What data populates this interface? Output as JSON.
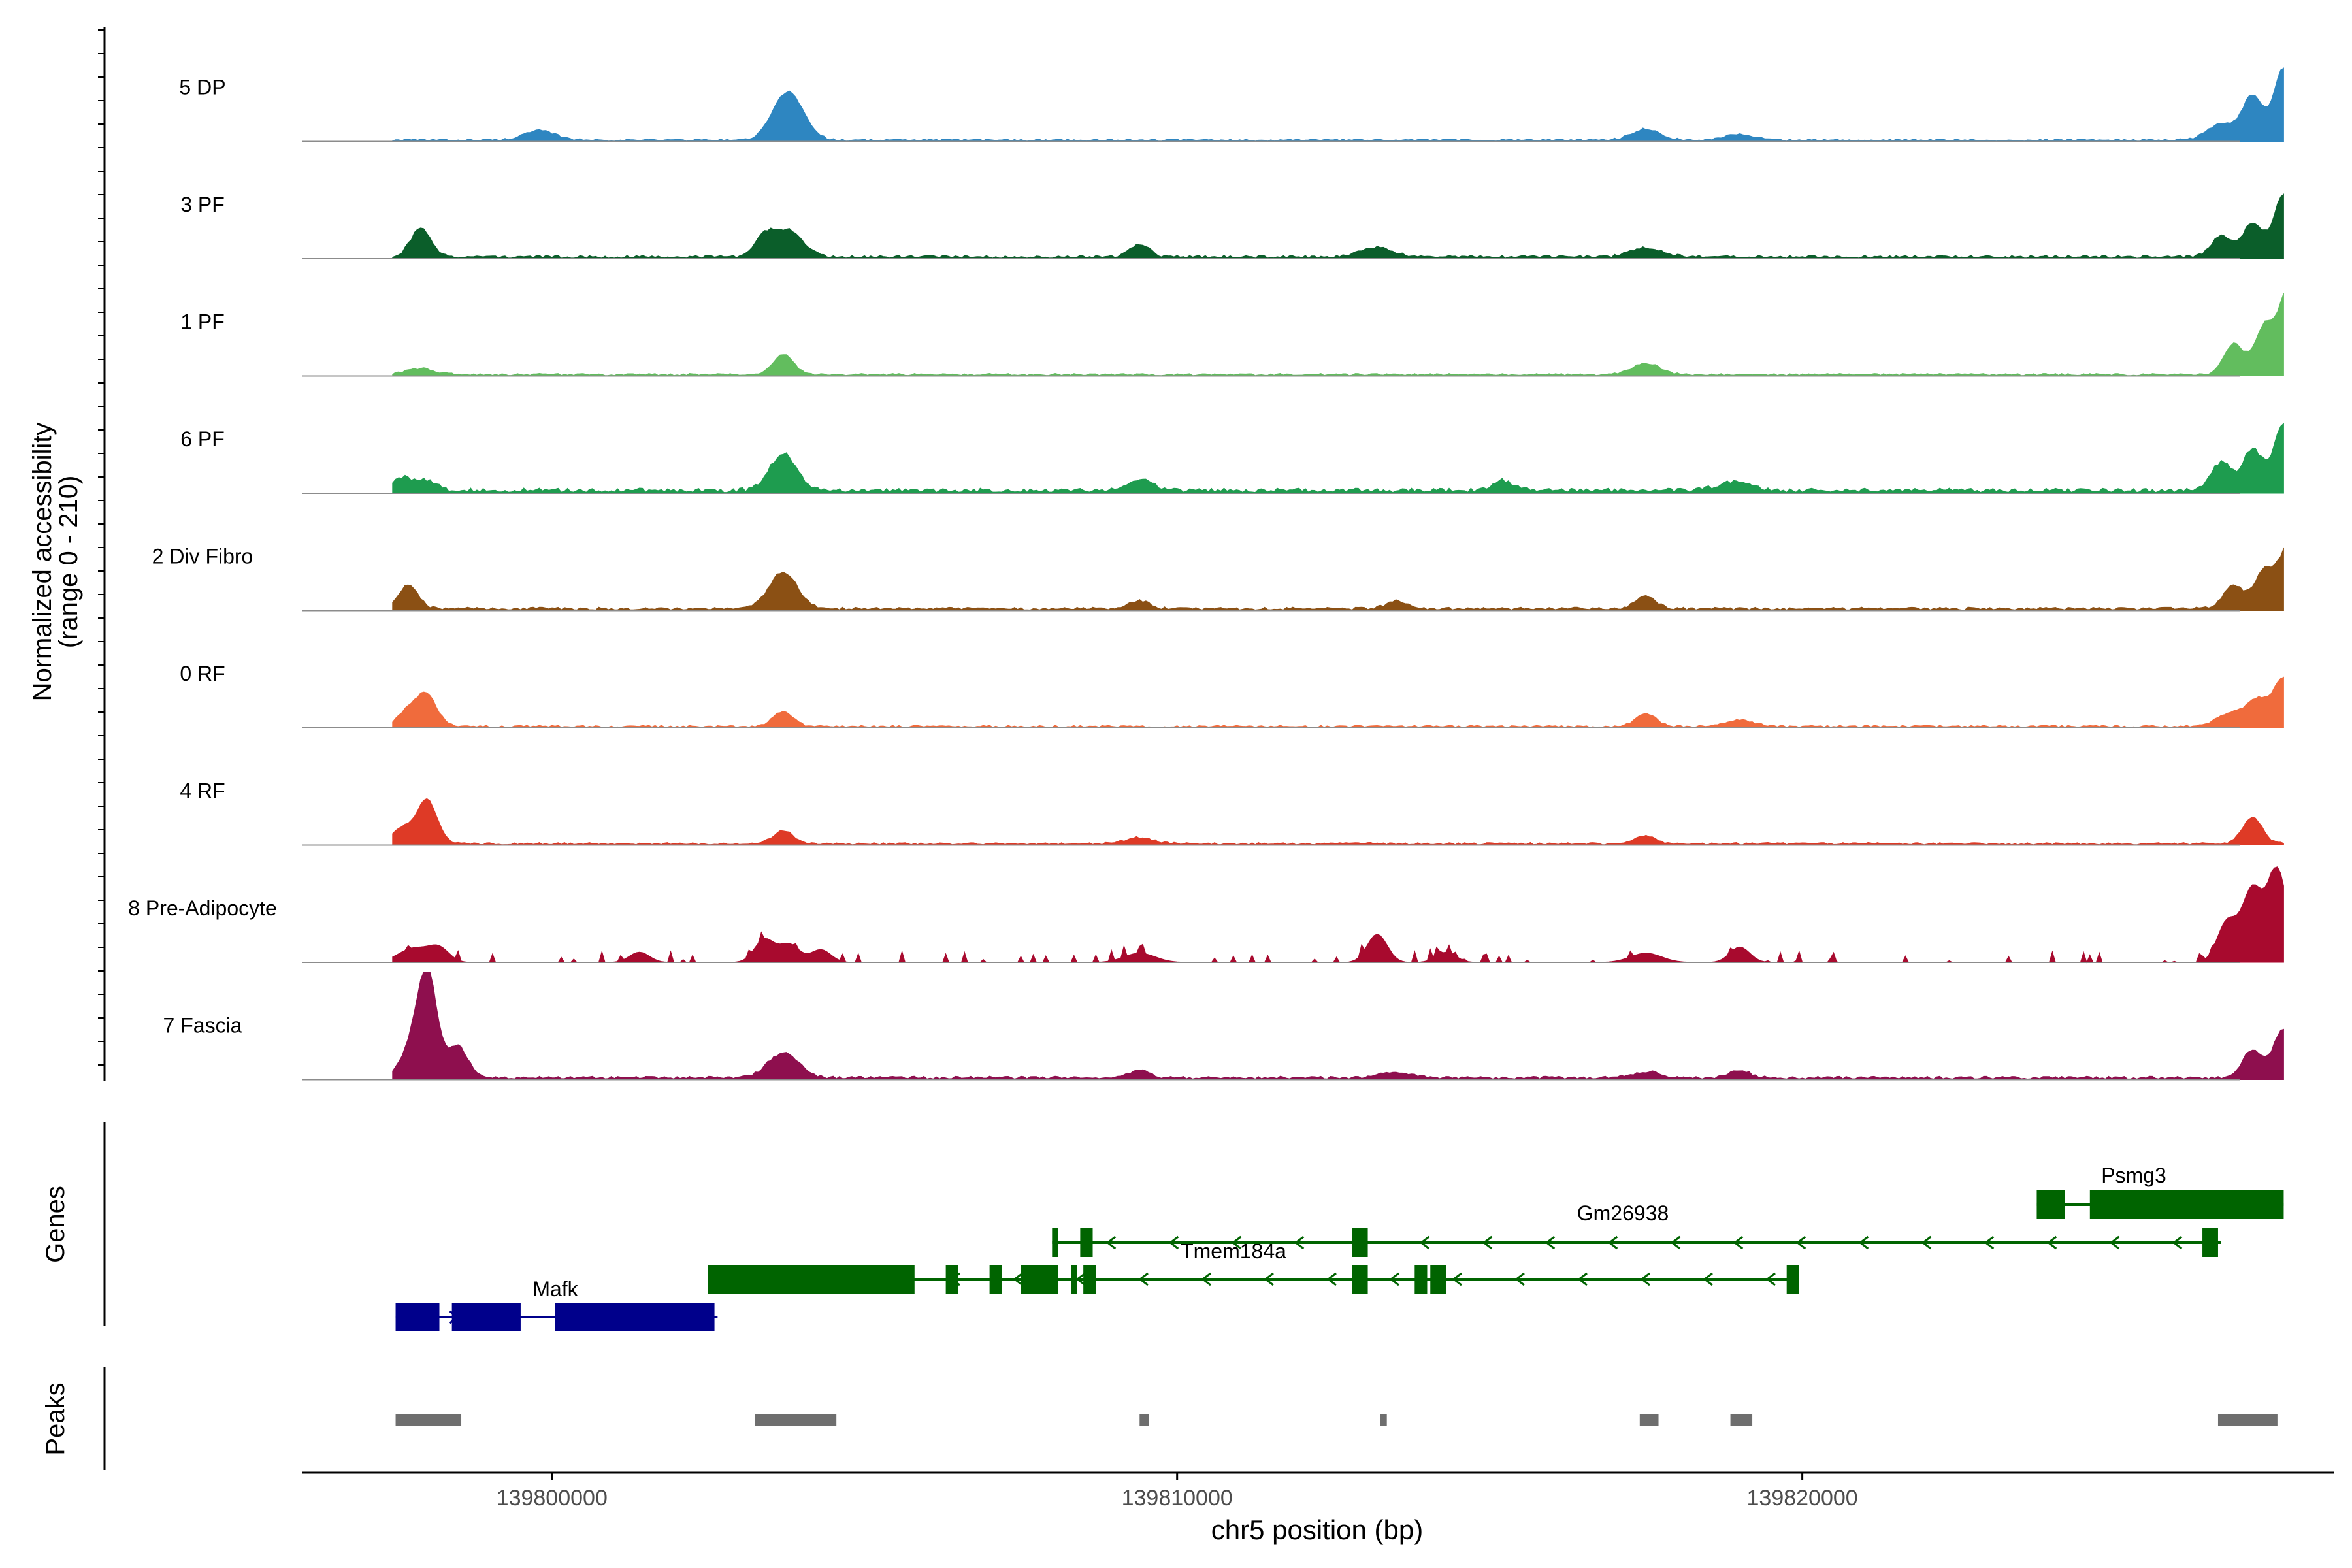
{
  "chart_data": {
    "type": "coverage-tracks",
    "region": {
      "chrom": "chr5",
      "start": 139796000,
      "end": 139828500
    },
    "xlabel": "chr5 position (bp)",
    "x_ticks": [
      139800000,
      139810000,
      139820000
    ],
    "coverage": {
      "ylabel_line1": "Normalized accessibility",
      "ylabel_line2": "(range 0 - 210)",
      "ymax": 210,
      "tracks": [
        {
          "label": "5 DP",
          "color": "#2E86C1",
          "base": 3,
          "peaks": [
            [
              139799800,
              18
            ],
            [
              139803700,
              62
            ],
            [
              139803900,
              42
            ],
            [
              139817500,
              22
            ],
            [
              139819000,
              12
            ],
            [
              139826700,
              32
            ],
            [
              139827200,
              85
            ],
            [
              139827700,
              140
            ]
          ]
        },
        {
          "label": "3 PF",
          "color": "#0B5E2A",
          "base": 4,
          "peaks": [
            [
              139797900,
              55
            ],
            [
              139803400,
              40
            ],
            [
              139803800,
              52
            ],
            [
              139809400,
              25
            ],
            [
              139813200,
              18
            ],
            [
              139817500,
              18
            ],
            [
              139826700,
              40
            ],
            [
              139827200,
              65
            ],
            [
              139827700,
              120
            ]
          ]
        },
        {
          "label": "1 PF",
          "color": "#62BD5E",
          "base": 3,
          "peaks": [
            [
              139797900,
              12
            ],
            [
              139803700,
              40
            ],
            [
              139817500,
              22
            ],
            [
              139826900,
              60
            ],
            [
              139827400,
              95
            ],
            [
              139827800,
              175
            ]
          ]
        },
        {
          "label": "6 PF",
          "color": "#1E9C4F",
          "base": 6,
          "peaks": [
            [
              139797600,
              25
            ],
            [
              139798000,
              20
            ],
            [
              139803700,
              72
            ],
            [
              139809400,
              22
            ],
            [
              139815200,
              20
            ],
            [
              139818900,
              18
            ],
            [
              139826700,
              55
            ],
            [
              139827200,
              80
            ],
            [
              139827700,
              130
            ]
          ]
        },
        {
          "label": "2 Div Fibro",
          "color": "#8B5014",
          "base": 4,
          "peaks": [
            [
              139797700,
              45
            ],
            [
              139803700,
              72
            ],
            [
              139809400,
              15
            ],
            [
              139813500,
              15
            ],
            [
              139817500,
              25
            ],
            [
              139826900,
              45
            ],
            [
              139827400,
              75
            ],
            [
              139827800,
              125
            ]
          ]
        },
        {
          "label": "0 RF",
          "color": "#F06B3C",
          "base": 3,
          "peaks": [
            [
              139797700,
              30
            ],
            [
              139798000,
              60
            ],
            [
              139803700,
              30
            ],
            [
              139817500,
              25
            ],
            [
              139819000,
              12
            ],
            [
              139826900,
              28
            ],
            [
              139827300,
              45
            ],
            [
              139827700,
              95
            ]
          ]
        },
        {
          "label": "4 RF",
          "color": "#DE3A26",
          "base": 3,
          "peaks": [
            [
              139797600,
              30
            ],
            [
              139798000,
              85
            ],
            [
              139803700,
              25
            ],
            [
              139809400,
              12
            ],
            [
              139817500,
              15
            ],
            [
              139827200,
              50
            ]
          ]
        },
        {
          "label": "8 Pre-Adipocyte",
          "color": "#A80A2E",
          "base": 0,
          "peaks": [
            [
              139797800,
              28
            ],
            [
              139798200,
              25
            ],
            [
              139801400,
              20
            ],
            [
              139803400,
              45
            ],
            [
              139803800,
              35
            ],
            [
              139804300,
              25
            ],
            [
              139809400,
              18
            ],
            [
              139813200,
              55
            ],
            [
              139814300,
              20
            ],
            [
              139817500,
              18
            ],
            [
              139819000,
              30
            ],
            [
              139826800,
              80
            ],
            [
              139827200,
              140
            ],
            [
              139827600,
              180
            ]
          ]
        },
        {
          "label": "7 Fascia",
          "color": "#8E0F4E",
          "base": 4,
          "peaks": [
            [
              139797700,
              40
            ],
            [
              139798000,
              210
            ],
            [
              139798500,
              60
            ],
            [
              139803700,
              48
            ],
            [
              139809400,
              15
            ],
            [
              139813500,
              12
            ],
            [
              139817500,
              12
            ],
            [
              139819000,
              15
            ],
            [
              139827200,
              55
            ],
            [
              139827700,
              95
            ]
          ]
        }
      ]
    },
    "genes": {
      "ylabel": "Genes",
      "items": [
        {
          "name": "Mafk",
          "color": "#00008B",
          "strand": "+",
          "start": 139797500,
          "end": 139802650,
          "exons": [
            [
              139797500,
              139798200
            ],
            [
              139798400,
              139799500
            ],
            [
              139800050,
              139802600
            ]
          ],
          "thick": [
            [
              139797550,
              139798250
            ],
            [
              139799050,
              139799400
            ],
            [
              139800050,
              139802650
            ]
          ]
        },
        {
          "name": "Tmem184a",
          "color": "#006400",
          "strand": "-",
          "start": 139802500,
          "end": 139819950,
          "exons": [
            [
              139802500,
              139805800
            ],
            [
              139806300,
              139806500
            ],
            [
              139807000,
              139807200
            ],
            [
              139807500,
              139808100
            ],
            [
              139808300,
              139808400
            ],
            [
              139808500,
              139808700
            ],
            [
              139812800,
              139813050
            ],
            [
              139813800,
              139814000
            ],
            [
              139814050,
              139814300
            ],
            [
              139819750,
              139819950
            ]
          ]
        },
        {
          "name": "Gm26938",
          "color": "#006400",
          "strand": "-",
          "start": 139808000,
          "end": 139826700,
          "exons": [
            [
              139808000,
              139808100
            ],
            [
              139808450,
              139808650
            ],
            [
              139812800,
              139813050
            ],
            [
              139826400,
              139826650
            ]
          ]
        },
        {
          "name": "Psmg3",
          "color": "#006400",
          "strand": "none",
          "start": 139823750,
          "end": 139827700,
          "exons": [
            [
              139823750,
              139824200
            ],
            [
              139824600,
              139827700
            ]
          ]
        }
      ]
    },
    "peaks": {
      "ylabel": "Peaks",
      "color": "#6E6E6E",
      "regions": [
        [
          139797500,
          139798550
        ],
        [
          139803250,
          139804550
        ],
        [
          139809400,
          139809550
        ],
        [
          139813250,
          139813350
        ],
        [
          139817400,
          139817700
        ],
        [
          139818850,
          139819200
        ],
        [
          139826650,
          139827600
        ]
      ]
    }
  }
}
